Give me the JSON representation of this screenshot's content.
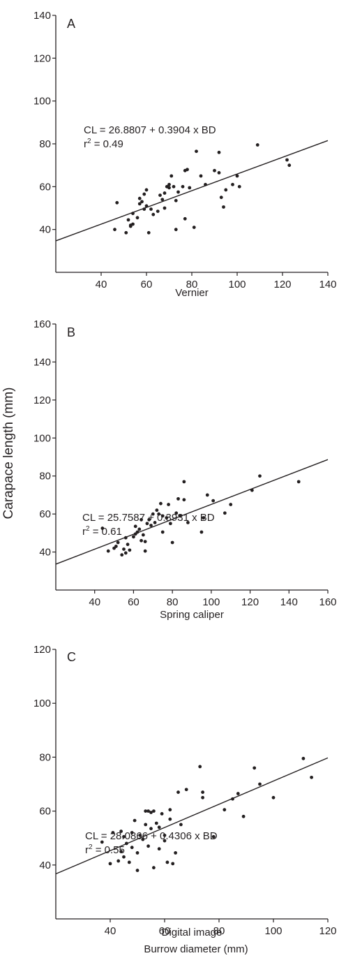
{
  "figure": {
    "shared_ylabel": "Carapace length (mm)",
    "shared_xlabel": "Burrow diameter (mm)"
  },
  "chart_data": [
    {
      "type": "scatter",
      "panel": "A",
      "xlabel": "Vernier",
      "ylabel": "Carapace length (mm)",
      "xlim": [
        20,
        140
      ],
      "ylim": [
        20,
        140
      ],
      "x_ticks": [
        40,
        60,
        80,
        100,
        120,
        140
      ],
      "y_ticks": [
        40,
        60,
        80,
        100,
        120,
        140
      ],
      "equation": "CL = 26.8807 + 0.3904 x BD",
      "r2_prefix": "r",
      "r2_exp": "2",
      "r2_value": " = 0.49",
      "regression": {
        "intercept": 26.8807,
        "slope": 0.3904
      },
      "points": [
        [
          46,
          40
        ],
        [
          47,
          52.5
        ],
        [
          51,
          38.5
        ],
        [
          52,
          44.5
        ],
        [
          53,
          42
        ],
        [
          53,
          41.5
        ],
        [
          54,
          47.5
        ],
        [
          54,
          42.5
        ],
        [
          56,
          45.5
        ],
        [
          57,
          54.5
        ],
        [
          57,
          52
        ],
        [
          58,
          53
        ],
        [
          59,
          49.5
        ],
        [
          59,
          56.5
        ],
        [
          60,
          58.5
        ],
        [
          60,
          51
        ],
        [
          61,
          38.5
        ],
        [
          62,
          49.5
        ],
        [
          63,
          47
        ],
        [
          65,
          48.5
        ],
        [
          66,
          56
        ],
        [
          67,
          54
        ],
        [
          68,
          57
        ],
        [
          68,
          50
        ],
        [
          69,
          60
        ],
        [
          70,
          61
        ],
        [
          70,
          59.5
        ],
        [
          71,
          65
        ],
        [
          72,
          60
        ],
        [
          73,
          53.5
        ],
        [
          73,
          40
        ],
        [
          74,
          57.5
        ],
        [
          76,
          60
        ],
        [
          77,
          45
        ],
        [
          77,
          67.5
        ],
        [
          78,
          68
        ],
        [
          79,
          59.5
        ],
        [
          81,
          41
        ],
        [
          82,
          76.5
        ],
        [
          84,
          65
        ],
        [
          86,
          61
        ],
        [
          90,
          67.5
        ],
        [
          92,
          76
        ],
        [
          92,
          66.5
        ],
        [
          93,
          55
        ],
        [
          94,
          50.5
        ],
        [
          95,
          58.5
        ],
        [
          98,
          61
        ],
        [
          100,
          65
        ],
        [
          101,
          60
        ],
        [
          109,
          79.5
        ],
        [
          122,
          72.5
        ],
        [
          123,
          70
        ]
      ]
    },
    {
      "type": "scatter",
      "panel": "B",
      "xlabel": "Spring caliper",
      "ylabel": "Carapace length (mm)",
      "xlim": [
        20,
        160
      ],
      "ylim": [
        20,
        160
      ],
      "x_ticks": [
        40,
        60,
        80,
        100,
        120,
        140,
        160
      ],
      "y_ticks": [
        40,
        60,
        80,
        100,
        120,
        140,
        160
      ],
      "equation": "CL = 25.7587 + 0.3931 x BD",
      "r2_prefix": "r",
      "r2_exp": "2",
      "r2_value": " = 0.61",
      "regression": {
        "intercept": 25.7587,
        "slope": 0.3931
      },
      "points": [
        [
          44,
          52.5
        ],
        [
          47,
          40.5
        ],
        [
          50,
          42
        ],
        [
          51,
          43
        ],
        [
          52,
          45
        ],
        [
          54,
          38.5
        ],
        [
          55,
          41.5
        ],
        [
          56,
          47.5
        ],
        [
          56,
          39.5
        ],
        [
          57,
          44
        ],
        [
          58,
          41
        ],
        [
          60,
          48
        ],
        [
          61,
          49.5
        ],
        [
          61,
          53.5
        ],
        [
          62,
          50.5
        ],
        [
          63,
          52
        ],
        [
          64,
          46
        ],
        [
          64,
          57
        ],
        [
          65,
          49
        ],
        [
          66,
          40.5
        ],
        [
          66,
          45.5
        ],
        [
          67,
          55
        ],
        [
          68,
          57
        ],
        [
          69,
          54
        ],
        [
          70,
          60
        ],
        [
          71,
          55.5
        ],
        [
          72,
          62
        ],
        [
          73,
          60
        ],
        [
          74,
          65.5
        ],
        [
          75,
          59
        ],
        [
          75,
          50.5
        ],
        [
          77,
          58
        ],
        [
          78,
          65
        ],
        [
          79,
          55
        ],
        [
          80,
          45
        ],
        [
          82,
          60.5
        ],
        [
          83,
          68
        ],
        [
          84,
          59
        ],
        [
          86,
          77
        ],
        [
          86,
          67.5
        ],
        [
          88,
          55.5
        ],
        [
          95,
          50.5
        ],
        [
          96,
          58
        ],
        [
          98,
          70
        ],
        [
          101,
          67
        ],
        [
          107,
          60.5
        ],
        [
          110,
          65
        ],
        [
          121,
          72.5
        ],
        [
          125,
          80
        ],
        [
          145,
          77
        ]
      ]
    },
    {
      "type": "scatter",
      "panel": "C",
      "xlabel": "Digital image",
      "ylabel": "Carapace length (mm)",
      "xlim": [
        20,
        120
      ],
      "ylim": [
        20,
        120
      ],
      "x_ticks": [
        40,
        60,
        80,
        100,
        120
      ],
      "y_ticks": [
        40,
        60,
        80,
        100,
        120
      ],
      "equation": "CL = 28.0866 + 0.4306 x BD",
      "r2_prefix": "r",
      "r2_exp": "2",
      "r2_value": " = 0.55",
      "regression": {
        "intercept": 28.0866,
        "slope": 0.4306
      },
      "points": [
        [
          37,
          48.5
        ],
        [
          40,
          40.5
        ],
        [
          41,
          52
        ],
        [
          43,
          41.5
        ],
        [
          44,
          52.5
        ],
        [
          44,
          45
        ],
        [
          45,
          43
        ],
        [
          45,
          50.5
        ],
        [
          46,
          48
        ],
        [
          47,
          41
        ],
        [
          48,
          46.5
        ],
        [
          48,
          52
        ],
        [
          49,
          56.5
        ],
        [
          50,
          44.5
        ],
        [
          50,
          38
        ],
        [
          51,
          51
        ],
        [
          52,
          49.5
        ],
        [
          53,
          60
        ],
        [
          53,
          55
        ],
        [
          54,
          47
        ],
        [
          54,
          60
        ],
        [
          55,
          53.5
        ],
        [
          55,
          59.5
        ],
        [
          56,
          60
        ],
        [
          56,
          39
        ],
        [
          57,
          55.5
        ],
        [
          58,
          54
        ],
        [
          58,
          46
        ],
        [
          59,
          59
        ],
        [
          60,
          51
        ],
        [
          60,
          49
        ],
        [
          61,
          41
        ],
        [
          62,
          57
        ],
        [
          62,
          60.5
        ],
        [
          63,
          40.5
        ],
        [
          64,
          44.5
        ],
        [
          65,
          67
        ],
        [
          66,
          55
        ],
        [
          68,
          68
        ],
        [
          73,
          76.5
        ],
        [
          74,
          67
        ],
        [
          74,
          65
        ],
        [
          78,
          50.5
        ],
        [
          82,
          60.5
        ],
        [
          85,
          64.5
        ],
        [
          87,
          66.5
        ],
        [
          89,
          58
        ],
        [
          93,
          76
        ],
        [
          95,
          70
        ],
        [
          100,
          65
        ],
        [
          111,
          79.5
        ],
        [
          114,
          72.5
        ]
      ]
    }
  ]
}
